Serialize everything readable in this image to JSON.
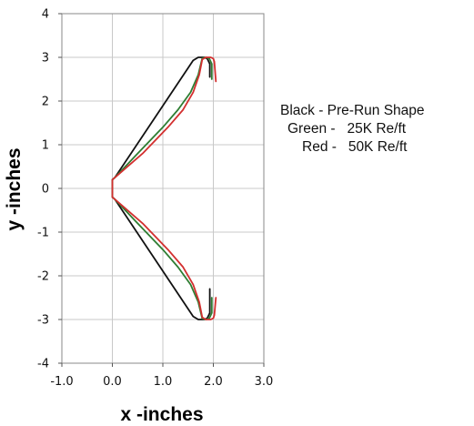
{
  "chart_data": {
    "type": "line",
    "xlabel": "x -inches",
    "ylabel": "y -inches",
    "xlim": [
      -1.0,
      3.0
    ],
    "ylim": [
      -4,
      4
    ],
    "xticks": [
      "-1.0",
      "0.0",
      "1.0",
      "2.0",
      "3.0"
    ],
    "yticks": [
      "4",
      "3",
      "2",
      "1",
      "0",
      "-1",
      "-2",
      "-3",
      "-4"
    ],
    "grid": true,
    "legend_placement": "right",
    "legend_lines": [
      "Black - Pre-Run Shape",
      "Green -   25K Re/ft",
      "Red -   50K Re/ft"
    ],
    "colors": {
      "black": "#111111",
      "green": "#2e7d32",
      "red": "#d32f2f",
      "grid": "#c8c8c8"
    },
    "series": [
      {
        "color": "black",
        "x": [
          1.93,
          1.93,
          1.88,
          1.82,
          1.7,
          1.6,
          0.05,
          0.0,
          0.0,
          0.0,
          0.05,
          1.6,
          1.7,
          1.82,
          1.88,
          1.93,
          1.93
        ],
        "y": [
          2.55,
          2.85,
          2.97,
          3.0,
          3.0,
          2.93,
          0.25,
          0.2,
          0.0,
          -0.2,
          -0.25,
          -2.93,
          -3.0,
          -3.0,
          -2.97,
          -2.85,
          -2.3
        ]
      },
      {
        "color": "green",
        "x": [
          1.97,
          1.97,
          1.92,
          1.85,
          1.78,
          1.7,
          1.55,
          1.3,
          1.0,
          0.5,
          0.05,
          0.0,
          0.0,
          0.0,
          0.05,
          0.5,
          1.0,
          1.3,
          1.55,
          1.7,
          1.78,
          1.85,
          1.92,
          1.97,
          1.97
        ],
        "y": [
          2.5,
          2.85,
          2.97,
          3.0,
          2.98,
          2.6,
          2.2,
          1.8,
          1.4,
          0.8,
          0.25,
          0.2,
          0.0,
          -0.2,
          -0.25,
          -0.8,
          -1.4,
          -1.8,
          -2.2,
          -2.6,
          -2.98,
          -3.0,
          -2.97,
          -2.85,
          -2.5
        ]
      },
      {
        "color": "red",
        "x": [
          2.05,
          2.02,
          2.0,
          1.95,
          1.85,
          1.78,
          1.72,
          1.6,
          1.4,
          1.1,
          0.6,
          0.05,
          0.0,
          0.0,
          0.0,
          0.05,
          0.6,
          1.1,
          1.4,
          1.6,
          1.72,
          1.78,
          1.85,
          1.95,
          2.0,
          2.02,
          2.05
        ],
        "y": [
          2.45,
          2.9,
          2.97,
          3.0,
          3.0,
          2.95,
          2.6,
          2.2,
          1.8,
          1.4,
          0.8,
          0.25,
          0.2,
          0.0,
          -0.2,
          -0.25,
          -0.8,
          -1.4,
          -1.8,
          -2.2,
          -2.6,
          -2.95,
          -3.0,
          -3.0,
          -2.97,
          -2.9,
          -2.5
        ]
      }
    ]
  }
}
